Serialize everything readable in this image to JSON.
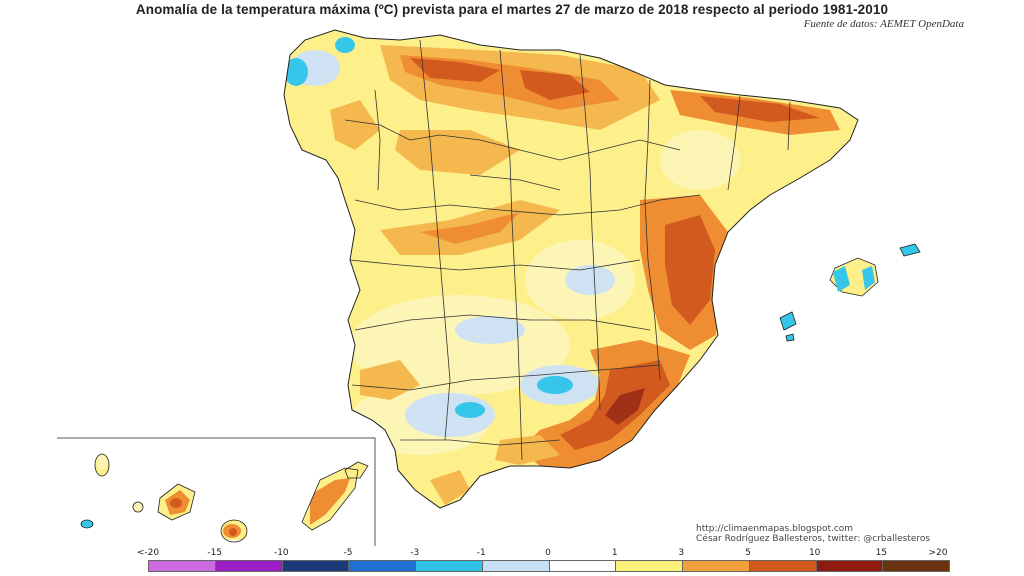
{
  "header": {
    "title": "Anomalía de la temperatura máxima (ºC) prevista para el martes 27 de marzo de 2018 respecto al periodo 1981-2010",
    "source": "Fuente de datos: AEMET OpenData"
  },
  "credits": {
    "url": "http://climaenmapas.blogspot.com",
    "author": "César Rodríguez Ballesteros, twitter: @crballesteros"
  },
  "legend": {
    "ticks": [
      "<-20",
      "-15",
      "-10",
      "-5",
      "-3",
      "-1",
      "0",
      "1",
      "3",
      "5",
      "10",
      "15",
      ">20"
    ],
    "colors": [
      "#cc6ae0",
      "#9b1fc4",
      "#1b3a7a",
      "#1f6fd2",
      "#2fc0e6",
      "#c8def2",
      "#ffffff",
      "#fbf07a",
      "#f1a03c",
      "#d35a1f",
      "#8f1a10",
      "#6a3410"
    ]
  },
  "map_colors": {
    "ocean": "#ffffff",
    "base": "#fdf08a",
    "pale": "#fcf5b6",
    "light_orange": "#f5b84e",
    "orange": "#ee8d32",
    "dark_orange": "#d35a1f",
    "very_dark": "#a03016",
    "light_blue": "#cfe2f4",
    "cyan": "#35c6ea",
    "border": "#222222",
    "inset_frame": "#555555"
  }
}
